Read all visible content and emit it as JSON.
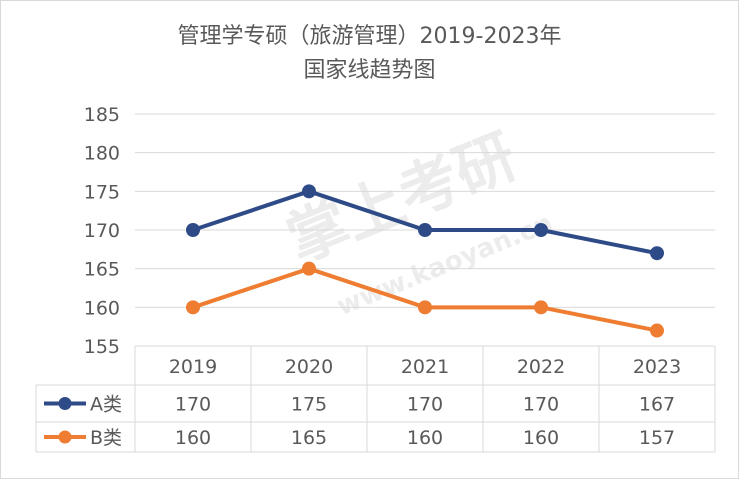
{
  "chart_data": {
    "type": "line",
    "title": "管理学专硕（旅游管理）2019-2023年",
    "subtitle": "国家线趋势图",
    "categories": [
      "2019",
      "2020",
      "2021",
      "2022",
      "2023"
    ],
    "series": [
      {
        "name": "A类",
        "values": [
          170,
          175,
          170,
          170,
          167
        ],
        "color": "#2e4a87"
      },
      {
        "name": "B类",
        "values": [
          160,
          165,
          160,
          160,
          157
        ],
        "color": "#ee7d31"
      }
    ],
    "yticks": [
      155,
      160,
      165,
      170,
      175,
      180,
      185
    ],
    "ylim": [
      155,
      185
    ],
    "grid": true,
    "legend": "table-left",
    "xlabel": "",
    "ylabel": ""
  },
  "watermark": {
    "brand": "掌上考研",
    "url": "www.kaoyan.cn"
  }
}
